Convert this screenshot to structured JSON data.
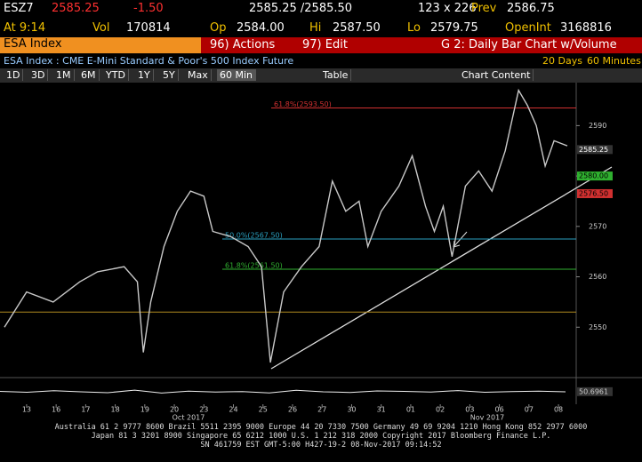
{
  "header": {
    "ticker": "ESZ7",
    "last": "2585.25",
    "change": "-1.50",
    "time": "At 9:14",
    "vol_label": "Vol",
    "vol": "170814",
    "bid_ask": "2585.25 /2585.50",
    "size": "123 x 226",
    "prev_label": "Prev",
    "prev": "2586.75",
    "open_label": "Op",
    "open": "2584.00",
    "high_label": "Hi",
    "high": "2587.50",
    "low_label": "Lo",
    "low": "2579.75",
    "oi_label": "OpenInt",
    "oi": "3168816"
  },
  "command": {
    "security": "ESA Index",
    "actions": "96) Actions",
    "edit": "97) Edit",
    "title": "G 2: Daily Bar Chart w/Volume"
  },
  "subtitle": {
    "description": "ESA Index : CME E-Mini Standard & Poor's 500 Index Future",
    "days": "20 Days",
    "interval": "60 Minutes"
  },
  "toolbar": {
    "ranges": [
      "1D",
      "3D",
      "1M",
      "6M",
      "YTD",
      "1Y",
      "5Y",
      "Max"
    ],
    "interval": "60 Min",
    "table": "Table",
    "content": "Chart Content"
  },
  "chart_data": {
    "type": "line",
    "color": "#c8c8c8",
    "x": [
      -0.75,
      0,
      0.9,
      1.8,
      2.4,
      3.3,
      3.75,
      3.95,
      4.2,
      4.65,
      5.1,
      5.55,
      6,
      6.3,
      6.9,
      7.5,
      7.95,
      8.25,
      8.7,
      9.3,
      9.9,
      10.35,
      10.8,
      11.25,
      11.55,
      12,
      12.6,
      13.05,
      13.5,
      13.8,
      14.1,
      14.4,
      14.85,
      15.3,
      15.75,
      16.2,
      16.65,
      16.95,
      17.25,
      17.55,
      17.85,
      18.3
    ],
    "values": [
      2550,
      2557,
      2555,
      2559,
      2561,
      2562,
      2559,
      2545,
      2555,
      2566,
      2573,
      2577,
      2576,
      2569,
      2568,
      2566,
      2562,
      2543,
      2557,
      2562,
      2566,
      2579,
      2573,
      2575,
      2566,
      2573,
      2578,
      2584,
      2574,
      2569,
      2574,
      2564,
      2578,
      2581,
      2577,
      2585,
      2597,
      2594,
      2590,
      2582,
      2587,
      2586
    ],
    "xlim": [
      -0.9,
      18.6
    ],
    "ylim": [
      2540,
      2598
    ],
    "xticks": [
      {
        "value": 0,
        "label": "13"
      },
      {
        "value": 1,
        "label": "16"
      },
      {
        "value": 2,
        "label": "17"
      },
      {
        "value": 3,
        "label": "18"
      },
      {
        "value": 4,
        "label": "19"
      },
      {
        "value": 5,
        "label": "20"
      },
      {
        "value": 6,
        "label": "23"
      },
      {
        "value": 7,
        "label": "24"
      },
      {
        "value": 8,
        "label": "25"
      },
      {
        "value": 9,
        "label": "26"
      },
      {
        "value": 10,
        "label": "27"
      },
      {
        "value": 11,
        "label": "30"
      },
      {
        "value": 12,
        "label": "31"
      },
      {
        "value": 13,
        "label": "01"
      },
      {
        "value": 14,
        "label": "02"
      },
      {
        "value": 15,
        "label": "03"
      },
      {
        "value": 16,
        "label": "06"
      },
      {
        "value": 17,
        "label": "07"
      },
      {
        "value": 18,
        "label": "08"
      }
    ],
    "yticks": [
      2550,
      2560,
      2570,
      2580,
      2590
    ],
    "months": [
      "Oct 2017",
      "Nov 2017"
    ],
    "levels": [
      {
        "value": 2593.5,
        "label": "61.8%(2593.50)",
        "color": "#d03030"
      },
      {
        "value": 2567.5,
        "label": "50.0%(2567.50)",
        "color": "#2aa0c0"
      },
      {
        "value": 2561.5,
        "label": "61.8%(2561.50)",
        "color": "#30b030"
      },
      {
        "value": 2553,
        "color": "#b08a20"
      }
    ],
    "price_tags": [
      {
        "value": 2585.25,
        "label": "2585.25",
        "color": "#ffffff"
      },
      {
        "value": 2580,
        "label": "2580.00",
        "color": "#2fb02f"
      },
      {
        "value": 2576.5,
        "label": "2576.50",
        "color": "#d03030"
      }
    ],
    "indicator": {
      "values": [
        52,
        48,
        55,
        50,
        46,
        58,
        44,
        53,
        49,
        51,
        45,
        57,
        50,
        47,
        54,
        52,
        49,
        56,
        48,
        51,
        53,
        50
      ],
      "ylim": [
        0,
        100
      ],
      "last": 50.6961
    }
  },
  "footer": [
    "Australia 61 2 9777 8600 Brazil 5511 2395 9000 Europe 44 20 7330 7500 Germany 49 69 9204 1210 Hong Kong 852 2977 6000",
    "Japan 81 3 3201 8900     Singapore 65 6212 1000     U.S. 1 212 318 2000     Copyright 2017 Bloomberg Finance L.P.",
    "SN 461759 EST  GMT-5:00 H427-19-2 08-Nov-2017 09:14:52"
  ]
}
